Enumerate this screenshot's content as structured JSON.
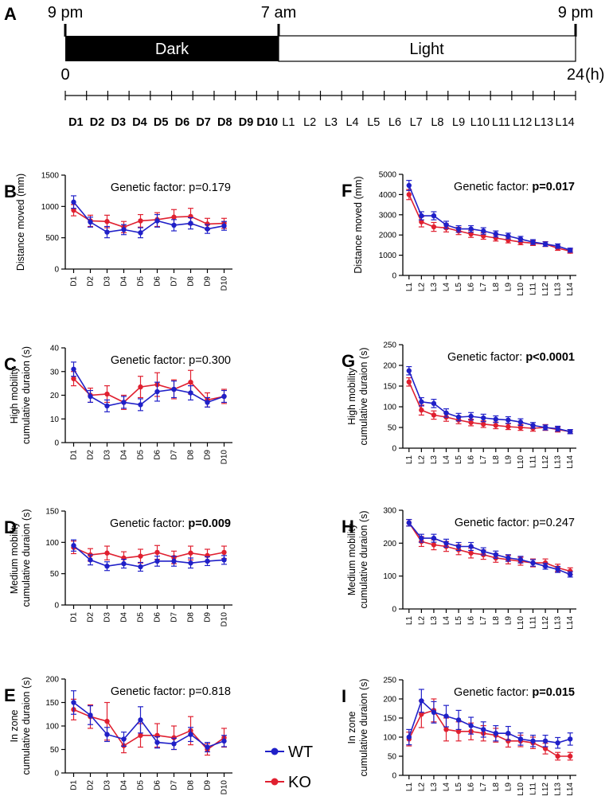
{
  "colors": {
    "wt": "#2020c8",
    "ko": "#e02030",
    "axis": "#000000",
    "dark_bar": "#000000"
  },
  "timeline": {
    "panel_letter": "A",
    "time_labels": [
      "9 pm",
      "7 am",
      "9 pm"
    ],
    "dark_label": "Dark",
    "light_label": "Light",
    "start_label": "0",
    "end_label": "24",
    "unit_label": "(h)",
    "bins": [
      "D1",
      "D2",
      "D3",
      "D4",
      "D5",
      "D6",
      "D7",
      "D8",
      "D9",
      "D10",
      "L1",
      "L2",
      "L3",
      "L4",
      "L5",
      "L6",
      "L7",
      "L8",
      "L9",
      "L10",
      "L11",
      "L12",
      "L13",
      "L14"
    ]
  },
  "legend": {
    "wt": "WT",
    "ko": "KO"
  },
  "chart_data": [
    {
      "panel": "B",
      "type": "line",
      "stat_prefix": "Genetic factor: ",
      "stat_value": "p=0.179",
      "stat_bold": false,
      "ylabel": [
        "Distance moved  (mm)"
      ],
      "ylim": [
        0,
        1500
      ],
      "yticks": [
        0,
        500,
        1000,
        1500
      ],
      "categories": [
        "D1",
        "D2",
        "D3",
        "D4",
        "D5",
        "D6",
        "D7",
        "D8",
        "D9",
        "D10"
      ],
      "series": [
        {
          "name": "WT",
          "values": [
            1070,
            750,
            590,
            630,
            580,
            770,
            700,
            730,
            640,
            690
          ],
          "err": [
            100,
            80,
            90,
            80,
            80,
            100,
            90,
            90,
            70,
            70
          ]
        },
        {
          "name": "KO",
          "values": [
            940,
            770,
            760,
            670,
            770,
            790,
            830,
            840,
            720,
            730
          ],
          "err": [
            90,
            90,
            100,
            90,
            100,
            110,
            120,
            130,
            90,
            80
          ]
        }
      ]
    },
    {
      "panel": "C",
      "type": "line",
      "stat_prefix": "Genetic factor: ",
      "stat_value": "p=0.300",
      "stat_bold": false,
      "ylabel": [
        "High mobility",
        "cumulative duraion (s)"
      ],
      "ylim": [
        0,
        40
      ],
      "yticks": [
        0,
        10,
        20,
        30,
        40
      ],
      "categories": [
        "D1",
        "D2",
        "D3",
        "D4",
        "D5",
        "D6",
        "D7",
        "D8",
        "D9",
        "D10"
      ],
      "series": [
        {
          "name": "WT",
          "values": [
            31,
            19.5,
            15.5,
            17,
            16,
            21.5,
            22.5,
            21,
            17,
            19.5
          ],
          "err": [
            3,
            2.5,
            2.5,
            2.5,
            2.5,
            4,
            3.5,
            3,
            2,
            2.5
          ]
        },
        {
          "name": "KO",
          "values": [
            27,
            20,
            20.5,
            17,
            23.5,
            24.5,
            22.5,
            25.5,
            18,
            19.5
          ],
          "err": [
            3,
            3,
            3.5,
            3,
            4.5,
            5,
            4,
            5,
            3,
            3
          ]
        }
      ]
    },
    {
      "panel": "D",
      "type": "line",
      "stat_prefix": "Genetic factor: ",
      "stat_value": "p=0.009",
      "stat_bold": true,
      "ylabel": [
        "Medium mobility",
        "cumulative duraion (s)"
      ],
      "ylim": [
        0,
        150
      ],
      "yticks": [
        0,
        50,
        100,
        150
      ],
      "categories": [
        "D1",
        "D2",
        "D3",
        "D4",
        "D5",
        "D6",
        "D7",
        "D8",
        "D9",
        "D10"
      ],
      "series": [
        {
          "name": "WT",
          "values": [
            95,
            72,
            62,
            66,
            61,
            70,
            70,
            67,
            70,
            72
          ],
          "err": [
            9,
            8,
            7,
            7,
            7,
            8,
            8,
            8,
            7,
            7
          ]
        },
        {
          "name": "KO",
          "values": [
            92,
            80,
            83,
            75,
            78,
            84,
            76,
            83,
            79,
            84
          ],
          "err": [
            10,
            10,
            11,
            10,
            11,
            11,
            10,
            11,
            10,
            10
          ]
        }
      ]
    },
    {
      "panel": "E",
      "type": "line",
      "stat_prefix": "Genetic factor: ",
      "stat_value": "p=0.818",
      "stat_bold": false,
      "ylabel": [
        "In zone",
        "cumulative duraion (s)"
      ],
      "ylim": [
        0,
        200
      ],
      "yticks": [
        0,
        50,
        100,
        150,
        200
      ],
      "categories": [
        "D1",
        "D2",
        "D3",
        "D4",
        "D5",
        "D6",
        "D7",
        "D8",
        "D9",
        "D10"
      ],
      "series": [
        {
          "name": "WT",
          "values": [
            150,
            123,
            82,
            72,
            113,
            65,
            62,
            82,
            55,
            68
          ],
          "err": [
            25,
            20,
            15,
            15,
            28,
            12,
            12,
            15,
            10,
            12
          ]
        },
        {
          "name": "KO",
          "values": [
            135,
            120,
            110,
            58,
            80,
            80,
            75,
            90,
            50,
            75
          ],
          "err": [
            22,
            25,
            40,
            15,
            25,
            25,
            25,
            30,
            12,
            20
          ]
        }
      ]
    },
    {
      "panel": "F",
      "type": "line",
      "stat_prefix": "Genetic factor: ",
      "stat_value": "p=0.017",
      "stat_bold": true,
      "ylabel": [
        "Distance moved  (mm)"
      ],
      "ylim": [
        0,
        5000
      ],
      "yticks": [
        0,
        1000,
        2000,
        3000,
        4000,
        5000
      ],
      "categories": [
        "L1",
        "L2",
        "L3",
        "L4",
        "L5",
        "L6",
        "L7",
        "L8",
        "L9",
        "L10",
        "L11",
        "L12",
        "L13",
        "L14"
      ],
      "series": [
        {
          "name": "WT",
          "values": [
            4450,
            2950,
            2950,
            2500,
            2300,
            2300,
            2200,
            2050,
            1950,
            1800,
            1650,
            1550,
            1450,
            1250
          ],
          "err": [
            250,
            200,
            200,
            180,
            160,
            160,
            160,
            150,
            140,
            130,
            120,
            110,
            110,
            100
          ]
        },
        {
          "name": "KO",
          "values": [
            4000,
            2650,
            2400,
            2350,
            2200,
            2050,
            1950,
            1850,
            1750,
            1650,
            1600,
            1550,
            1350,
            1200
          ],
          "err": [
            250,
            250,
            220,
            200,
            180,
            170,
            160,
            150,
            140,
            130,
            120,
            120,
            110,
            100
          ]
        }
      ]
    },
    {
      "panel": "G",
      "type": "line",
      "stat_prefix": "Genetic factor: ",
      "stat_value": "p<0.0001",
      "stat_bold": true,
      "ylabel": [
        "High mobility",
        "cumulative duraion (s)"
      ],
      "ylim": [
        0,
        250
      ],
      "yticks": [
        0,
        50,
        100,
        150,
        200,
        250
      ],
      "categories": [
        "L1",
        "L2",
        "L3",
        "L4",
        "L5",
        "L6",
        "L7",
        "L8",
        "L9",
        "L10",
        "L11",
        "L12",
        "L13",
        "L14"
      ],
      "series": [
        {
          "name": "WT",
          "values": [
            187,
            112,
            108,
            85,
            75,
            77,
            73,
            70,
            68,
            63,
            55,
            50,
            47,
            40
          ],
          "err": [
            10,
            10,
            10,
            10,
            9,
            9,
            9,
            8,
            8,
            8,
            7,
            6,
            6,
            5
          ]
        },
        {
          "name": "KO",
          "values": [
            160,
            92,
            80,
            75,
            68,
            62,
            58,
            55,
            52,
            50,
            48,
            50,
            45,
            40
          ],
          "err": [
            10,
            12,
            10,
            10,
            9,
            8,
            8,
            8,
            7,
            7,
            7,
            7,
            6,
            5
          ]
        }
      ]
    },
    {
      "panel": "H",
      "type": "line",
      "stat_prefix": "Genetic factor: ",
      "stat_value": "p=0.247",
      "stat_bold": false,
      "ylabel": [
        "Medium mobility",
        "cumulative duraion (s)"
      ],
      "ylim": [
        0,
        300
      ],
      "yticks": [
        0,
        100,
        200,
        300
      ],
      "categories": [
        "L1",
        "L2",
        "L3",
        "L4",
        "L5",
        "L6",
        "L7",
        "L8",
        "L9",
        "L10",
        "L11",
        "L12",
        "L13",
        "L14"
      ],
      "series": [
        {
          "name": "WT",
          "values": [
            262,
            215,
            215,
            200,
            190,
            190,
            175,
            165,
            155,
            150,
            140,
            130,
            120,
            105
          ],
          "err": [
            10,
            12,
            12,
            12,
            12,
            12,
            11,
            11,
            10,
            10,
            10,
            9,
            9,
            8
          ]
        },
        {
          "name": "KO",
          "values": [
            262,
            205,
            195,
            190,
            180,
            170,
            165,
            155,
            150,
            145,
            140,
            140,
            125,
            115
          ],
          "err": [
            10,
            15,
            15,
            15,
            15,
            15,
            14,
            13,
            13,
            12,
            12,
            12,
            11,
            10
          ]
        }
      ]
    },
    {
      "panel": "I",
      "type": "line",
      "stat_prefix": "Genetic factor: ",
      "stat_value": "p=0.015",
      "stat_bold": true,
      "ylabel": [
        "In zone",
        "cumulative duraion (s)"
      ],
      "ylim": [
        0,
        250
      ],
      "yticks": [
        0,
        50,
        100,
        150,
        200,
        250
      ],
      "categories": [
        "L1",
        "L2",
        "L3",
        "L4",
        "L5",
        "L6",
        "L7",
        "L8",
        "L9",
        "L10",
        "L11",
        "L12",
        "L13",
        "L14"
      ],
      "series": [
        {
          "name": "WT",
          "values": [
            100,
            195,
            165,
            155,
            145,
            130,
            120,
            110,
            110,
            95,
            90,
            90,
            85,
            95
          ],
          "err": [
            20,
            30,
            28,
            28,
            25,
            22,
            20,
            20,
            18,
            16,
            15,
            15,
            14,
            16
          ]
        },
        {
          "name": "KO",
          "values": [
            95,
            160,
            170,
            120,
            115,
            115,
            110,
            105,
            90,
            90,
            85,
            70,
            50,
            50
          ],
          "err": [
            18,
            35,
            30,
            30,
            25,
            22,
            20,
            18,
            16,
            15,
            15,
            14,
            10,
            10
          ]
        }
      ]
    }
  ]
}
